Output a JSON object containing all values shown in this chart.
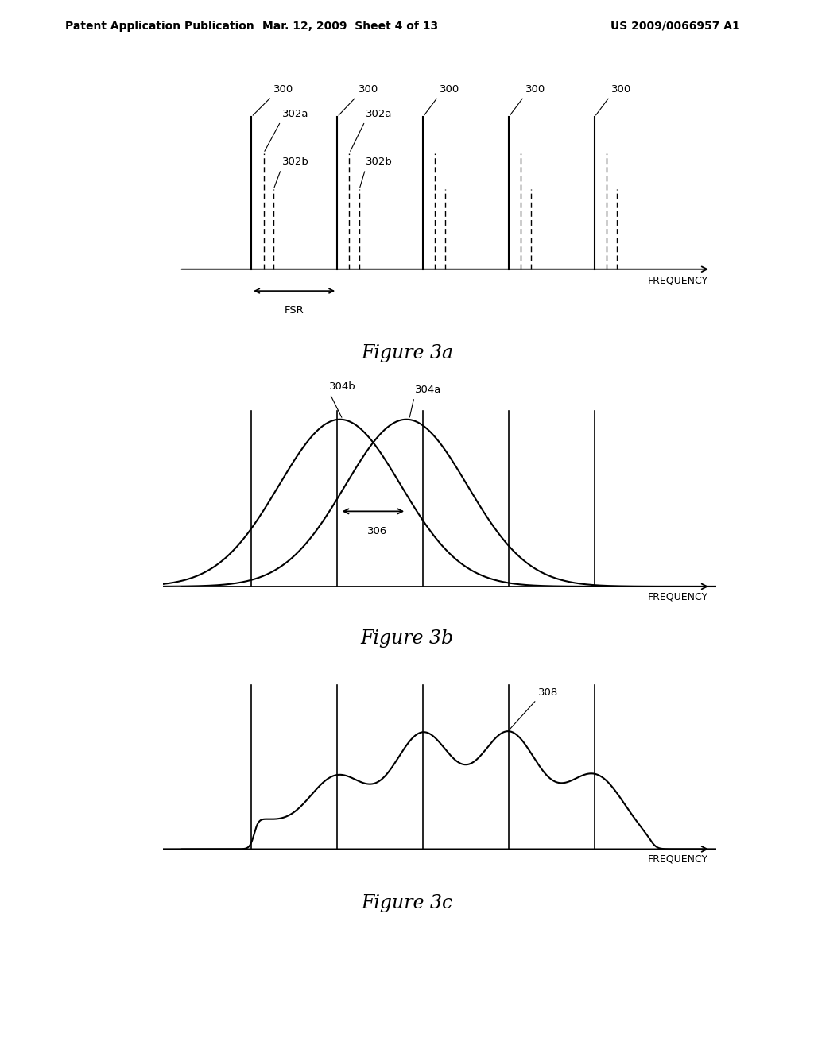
{
  "bg_color": "#ffffff",
  "header_left": "Patent Application Publication",
  "header_mid": "Mar. 12, 2009  Sheet 4 of 13",
  "header_right": "US 2009/0066957 A1",
  "fig3a_title": "Figure 3a",
  "fig3b_title": "Figure 3b",
  "fig3c_title": "Figure 3c",
  "fig3a_fsr_label": "FSR",
  "fig3a_freq_label": "FREQUENCY",
  "fig3b_freq_label": "FREQUENCY",
  "fig3c_freq_label": "FREQUENCY",
  "label_300": "300",
  "label_302a": "302a",
  "label_302b": "302b",
  "label_304a": "304a",
  "label_304b": "304b",
  "label_306": "306",
  "label_308": "308"
}
